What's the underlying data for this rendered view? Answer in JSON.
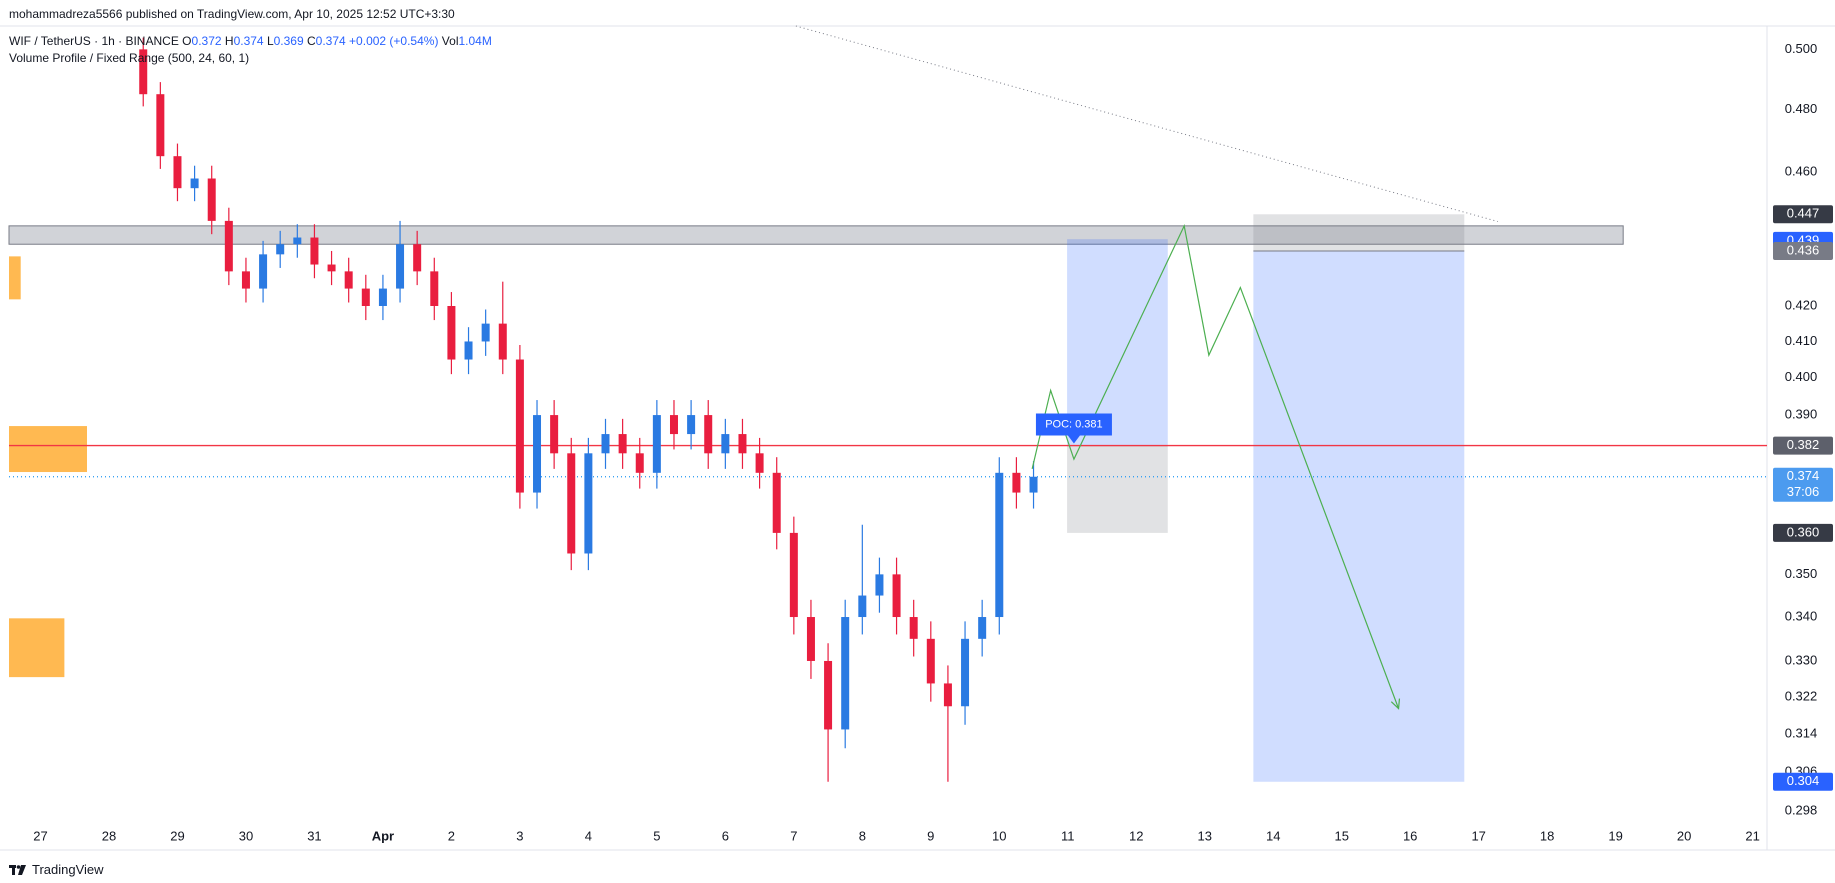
{
  "header": {
    "published": "mohammadreza5566 published on TradingView.com, Apr 10, 2025 12:52 UTC+3:30"
  },
  "footer": {
    "brand": "TradingView"
  },
  "chart_data": {
    "type": "candlestick",
    "title": "WIF / TetherUS · 1h · BINANCE",
    "ohlc_legend": [
      {
        "label": "O",
        "value": 0.372
      },
      {
        "label": "H",
        "value": 0.374
      },
      {
        "label": "L",
        "value": 0.369
      },
      {
        "label": "C",
        "value": 0.374
      }
    ],
    "change": "+0.002 (+0.54%)",
    "volume_label": "Vol",
    "volume": "1.04M",
    "indicator": "Volume Profile / Fixed Range (500, 24, 60, 1)",
    "x": [
      1.5,
      1.75,
      2,
      2.25,
      2.5,
      2.75,
      3,
      3.25,
      3.5,
      3.75,
      4,
      4.25,
      4.5,
      4.75,
      5,
      5.25,
      5.5,
      5.75,
      6,
      6.25,
      6.5,
      6.75,
      7,
      7.25,
      7.5,
      7.75,
      8,
      8.25,
      8.5,
      8.75,
      9,
      9.25,
      9.5,
      9.75,
      10,
      10.25,
      10.5,
      10.75,
      11,
      11.25,
      11.5,
      11.75,
      12,
      12.25,
      12.5,
      12.75,
      13,
      13.25,
      13.5,
      13.75,
      14,
      14.25,
      14.5
    ],
    "open": [
      0.5,
      0.485,
      0.465,
      0.455,
      0.458,
      0.445,
      0.43,
      0.425,
      0.435,
      0.438,
      0.44,
      0.432,
      0.43,
      0.425,
      0.42,
      0.425,
      0.438,
      0.43,
      0.42,
      0.405,
      0.41,
      0.415,
      0.405,
      0.37,
      0.39,
      0.38,
      0.355,
      0.38,
      0.385,
      0.38,
      0.375,
      0.39,
      0.385,
      0.39,
      0.38,
      0.385,
      0.38,
      0.375,
      0.36,
      0.34,
      0.33,
      0.315,
      0.34,
      0.345,
      0.35,
      0.34,
      0.335,
      0.325,
      0.32,
      0.335,
      0.34,
      0.375,
      0.37
    ],
    "high": [
      0.504,
      0.489,
      0.469,
      0.462,
      0.462,
      0.449,
      0.434,
      0.439,
      0.442,
      0.444,
      0.444,
      0.436,
      0.434,
      0.429,
      0.429,
      0.445,
      0.442,
      0.434,
      0.424,
      0.414,
      0.419,
      0.427,
      0.409,
      0.394,
      0.394,
      0.384,
      0.384,
      0.389,
      0.389,
      0.384,
      0.394,
      0.394,
      0.394,
      0.394,
      0.389,
      0.389,
      0.384,
      0.379,
      0.364,
      0.344,
      0.334,
      0.344,
      0.362,
      0.354,
      0.354,
      0.344,
      0.339,
      0.329,
      0.339,
      0.344,
      0.379,
      0.379,
      0.378
    ],
    "low": [
      0.481,
      0.461,
      0.451,
      0.451,
      0.441,
      0.426,
      0.421,
      0.421,
      0.431,
      0.434,
      0.428,
      0.426,
      0.421,
      0.416,
      0.416,
      0.421,
      0.426,
      0.416,
      0.401,
      0.401,
      0.406,
      0.401,
      0.366,
      0.366,
      0.376,
      0.351,
      0.351,
      0.376,
      0.376,
      0.371,
      0.371,
      0.381,
      0.381,
      0.376,
      0.376,
      0.376,
      0.371,
      0.356,
      0.336,
      0.326,
      0.304,
      0.311,
      0.336,
      0.341,
      0.336,
      0.331,
      0.321,
      0.304,
      0.316,
      0.331,
      0.336,
      0.366,
      0.366
    ],
    "close": [
      0.485,
      0.465,
      0.455,
      0.458,
      0.445,
      0.43,
      0.425,
      0.435,
      0.438,
      0.44,
      0.432,
      0.43,
      0.425,
      0.42,
      0.425,
      0.438,
      0.43,
      0.42,
      0.405,
      0.41,
      0.415,
      0.405,
      0.37,
      0.39,
      0.38,
      0.355,
      0.38,
      0.385,
      0.38,
      0.375,
      0.39,
      0.385,
      0.39,
      0.38,
      0.385,
      0.38,
      0.375,
      0.36,
      0.34,
      0.33,
      0.315,
      0.34,
      0.345,
      0.35,
      0.34,
      0.335,
      0.325,
      0.32,
      0.335,
      0.34,
      0.375,
      0.37,
      0.374
    ],
    "up_color": "#2a7ae2",
    "down_color": "#e91e3f",
    "xlim": [
      -0.46,
      25.21
    ],
    "xticks": [
      {
        "value": 0,
        "label": "27"
      },
      {
        "value": 1,
        "label": "28"
      },
      {
        "value": 2,
        "label": "29"
      },
      {
        "value": 3,
        "label": "30"
      },
      {
        "value": 4,
        "label": "31"
      },
      {
        "value": 5,
        "label": "Apr"
      },
      {
        "value": 6,
        "label": "2"
      },
      {
        "value": 7,
        "label": "3"
      },
      {
        "value": 8,
        "label": "4"
      },
      {
        "value": 9,
        "label": "5"
      },
      {
        "value": 10,
        "label": "6"
      },
      {
        "value": 11,
        "label": "7"
      },
      {
        "value": 12,
        "label": "8"
      },
      {
        "value": 13,
        "label": "9"
      },
      {
        "value": 14,
        "label": "10"
      },
      {
        "value": 15,
        "label": "11"
      },
      {
        "value": 16,
        "label": "12"
      },
      {
        "value": 17,
        "label": "13"
      },
      {
        "value": 18,
        "label": "14"
      },
      {
        "value": 19,
        "label": "15"
      },
      {
        "value": 20,
        "label": "16"
      },
      {
        "value": 21,
        "label": "17"
      },
      {
        "value": 22,
        "label": "18"
      },
      {
        "value": 23,
        "label": "19"
      },
      {
        "value": 24,
        "label": "20"
      },
      {
        "value": 25,
        "label": "21"
      }
    ],
    "ylim": [
      0.2954,
      0.508
    ],
    "log_y": true,
    "grid": false,
    "yticks": [
      {
        "value": 0.5,
        "label": "0.500"
      },
      {
        "value": 0.48,
        "label": "0.480"
      },
      {
        "value": 0.46,
        "label": "0.460"
      },
      {
        "value": 0.42,
        "label": "0.420"
      },
      {
        "value": 0.41,
        "label": "0.410"
      },
      {
        "value": 0.4,
        "label": "0.400"
      },
      {
        "value": 0.39,
        "label": "0.390"
      },
      {
        "value": 0.35,
        "label": "0.350"
      },
      {
        "value": 0.34,
        "label": "0.340"
      },
      {
        "value": 0.33,
        "label": "0.330"
      },
      0.322,
      0.314,
      0.306,
      0.298
    ],
    "price_tags": [
      {
        "value": 0.447,
        "color": "#363a45"
      },
      {
        "value": 0.439,
        "color": "#2962ff"
      },
      {
        "value": 0.436,
        "color": "#787b86"
      },
      {
        "value": 0.382,
        "color": "#5d606b"
      },
      {
        "value": 0.374,
        "color": "#4c9bef",
        "countdown": "37:06"
      },
      {
        "value": 0.36,
        "label": "0.360",
        "color": "#363a45"
      },
      {
        "value": 0.304,
        "color": "#2962ff"
      }
    ],
    "lines": [
      {
        "value": 0.382,
        "color": "#f23645",
        "style": "solid"
      },
      {
        "value": 0.374,
        "color": "#2196f3",
        "style": "dotted"
      }
    ],
    "zones": [
      {
        "x": [
          -0.46,
          23.11
        ],
        "y": [
          0.438,
          0.4435
        ],
        "color": "#b2b5be"
      }
    ],
    "positions": [
      {
        "x": [
          14.99,
          16.46
        ],
        "target": 0.4395,
        "entry": 0.382,
        "stop": 0.36
      },
      {
        "x": [
          17.71,
          20.79
        ],
        "target": 0.304,
        "entry": 0.436,
        "stop": 0.447
      }
    ],
    "position_colors": {
      "target": "#2962ff",
      "stop": "#787b86"
    },
    "volume_profile": {
      "color": "#ffa726",
      "rows": [
        {
          "y": [
            0.4219,
            0.4344
          ],
          "volume": 15
        },
        {
          "y": [
            0.3752,
            0.3871
          ],
          "volume": 100
        },
        {
          "y": [
            0.3264,
            0.3397
          ],
          "volume": 71
        }
      ]
    },
    "projection": {
      "color": "#4caf50",
      "x": [
        14.48,
        14.75,
        15.09,
        16.7,
        17.06,
        17.52,
        19.83
      ],
      "y": [
        0.376,
        0.3966,
        0.3785,
        0.4435,
        0.4062,
        0.4253,
        0.3195
      ]
    },
    "trendline": {
      "x": [
        11.03,
        21.28
      ],
      "y": [
        0.508,
        0.4448
      ]
    },
    "poc": {
      "label": "POC: 0.381",
      "value": 0.381,
      "x": 15.09
    }
  }
}
